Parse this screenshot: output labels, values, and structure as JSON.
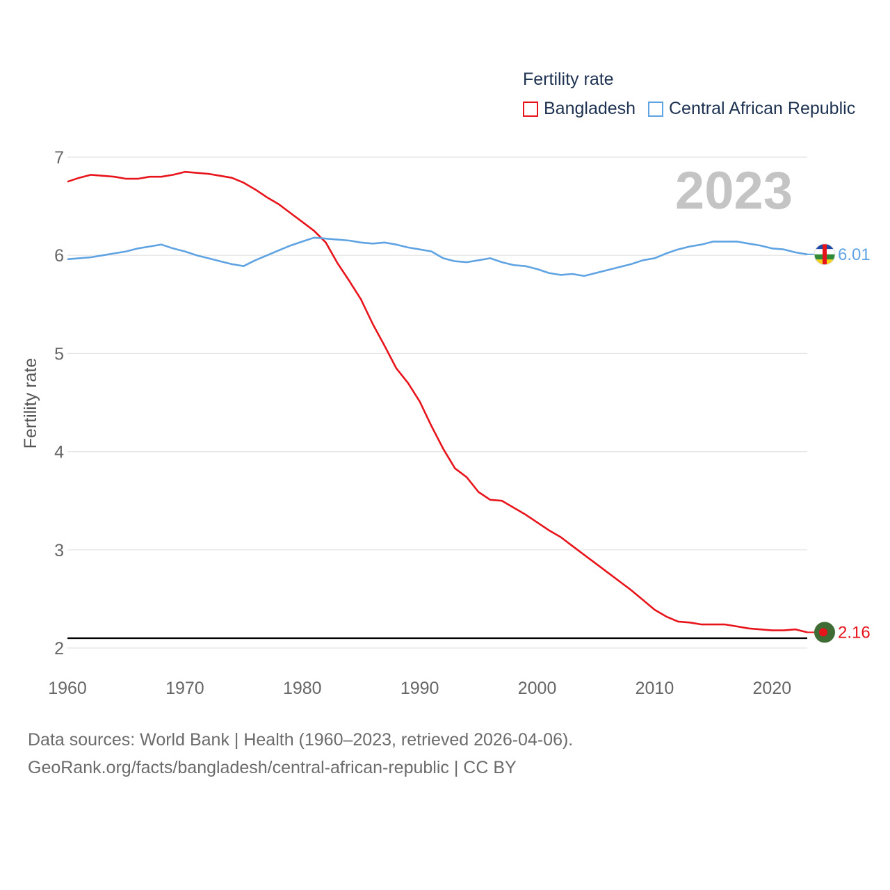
{
  "legend": {
    "title": "Fertility rate",
    "items": [
      {
        "label": "Bangladesh",
        "color": "#e8141b"
      },
      {
        "label": "Central African Republic",
        "color": "#5fa3e3"
      }
    ]
  },
  "sources": {
    "line1": "Data sources: World Bank | Health (1960–2023, retrieved 2026-04-06).",
    "line2": "GeoRank.org/facts/bangladesh/central-african-republic | CC BY"
  },
  "chart_data": {
    "type": "line",
    "title": "",
    "year_label": "2023",
    "xlabel": "",
    "ylabel": "Fertility rate",
    "xlim": [
      1960,
      2023
    ],
    "ylim": [
      2,
      7
    ],
    "x_ticks": [
      "1960",
      "1970",
      "1980",
      "1990",
      "2000",
      "2010",
      "2020"
    ],
    "y_ticks": [
      "2",
      "3",
      "4",
      "5",
      "6",
      "7"
    ],
    "reference_line": 2.1,
    "x": [
      1960,
      1961,
      1962,
      1963,
      1964,
      1965,
      1966,
      1967,
      1968,
      1969,
      1970,
      1971,
      1972,
      1973,
      1974,
      1975,
      1976,
      1977,
      1978,
      1979,
      1980,
      1981,
      1982,
      1983,
      1984,
      1985,
      1986,
      1987,
      1988,
      1989,
      1990,
      1991,
      1992,
      1993,
      1994,
      1995,
      1996,
      1997,
      1998,
      1999,
      2000,
      2001,
      2002,
      2003,
      2004,
      2005,
      2006,
      2007,
      2008,
      2009,
      2010,
      2011,
      2012,
      2013,
      2014,
      2015,
      2016,
      2017,
      2018,
      2019,
      2020,
      2021,
      2022,
      2023
    ],
    "series": [
      {
        "name": "Bangladesh",
        "color": "#e8141b",
        "end_label": "2.16",
        "values": [
          6.75,
          6.79,
          6.82,
          6.81,
          6.8,
          6.78,
          6.78,
          6.8,
          6.8,
          6.82,
          6.85,
          6.84,
          6.83,
          6.81,
          6.79,
          6.74,
          6.67,
          6.59,
          6.52,
          6.43,
          6.34,
          6.25,
          6.13,
          5.92,
          5.74,
          5.55,
          5.3,
          5.08,
          4.85,
          4.7,
          4.51,
          4.26,
          4.03,
          3.83,
          3.74,
          3.59,
          3.51,
          3.5,
          3.43,
          3.36,
          3.28,
          3.2,
          3.13,
          3.04,
          2.95,
          2.86,
          2.77,
          2.68,
          2.59,
          2.49,
          2.39,
          2.32,
          2.27,
          2.26,
          2.24,
          2.24,
          2.24,
          2.22,
          2.2,
          2.19,
          2.18,
          2.18,
          2.19,
          2.16
        ]
      },
      {
        "name": "Central African Republic",
        "color": "#5fa3e3",
        "end_label": "6.01",
        "values": [
          5.96,
          5.97,
          5.98,
          6.0,
          6.02,
          6.04,
          6.07,
          6.09,
          6.11,
          6.07,
          6.04,
          6.0,
          5.97,
          5.94,
          5.91,
          5.89,
          5.95,
          6.0,
          6.05,
          6.1,
          6.14,
          6.18,
          6.17,
          6.16,
          6.15,
          6.13,
          6.12,
          6.13,
          6.11,
          6.08,
          6.06,
          6.04,
          5.97,
          5.94,
          5.93,
          5.95,
          5.97,
          5.93,
          5.9,
          5.89,
          5.86,
          5.82,
          5.8,
          5.81,
          5.79,
          5.82,
          5.85,
          5.88,
          5.91,
          5.95,
          5.97,
          6.02,
          6.06,
          6.09,
          6.11,
          6.14,
          6.14,
          6.14,
          6.12,
          6.1,
          6.07,
          6.06,
          6.03,
          6.01
        ]
      }
    ]
  }
}
